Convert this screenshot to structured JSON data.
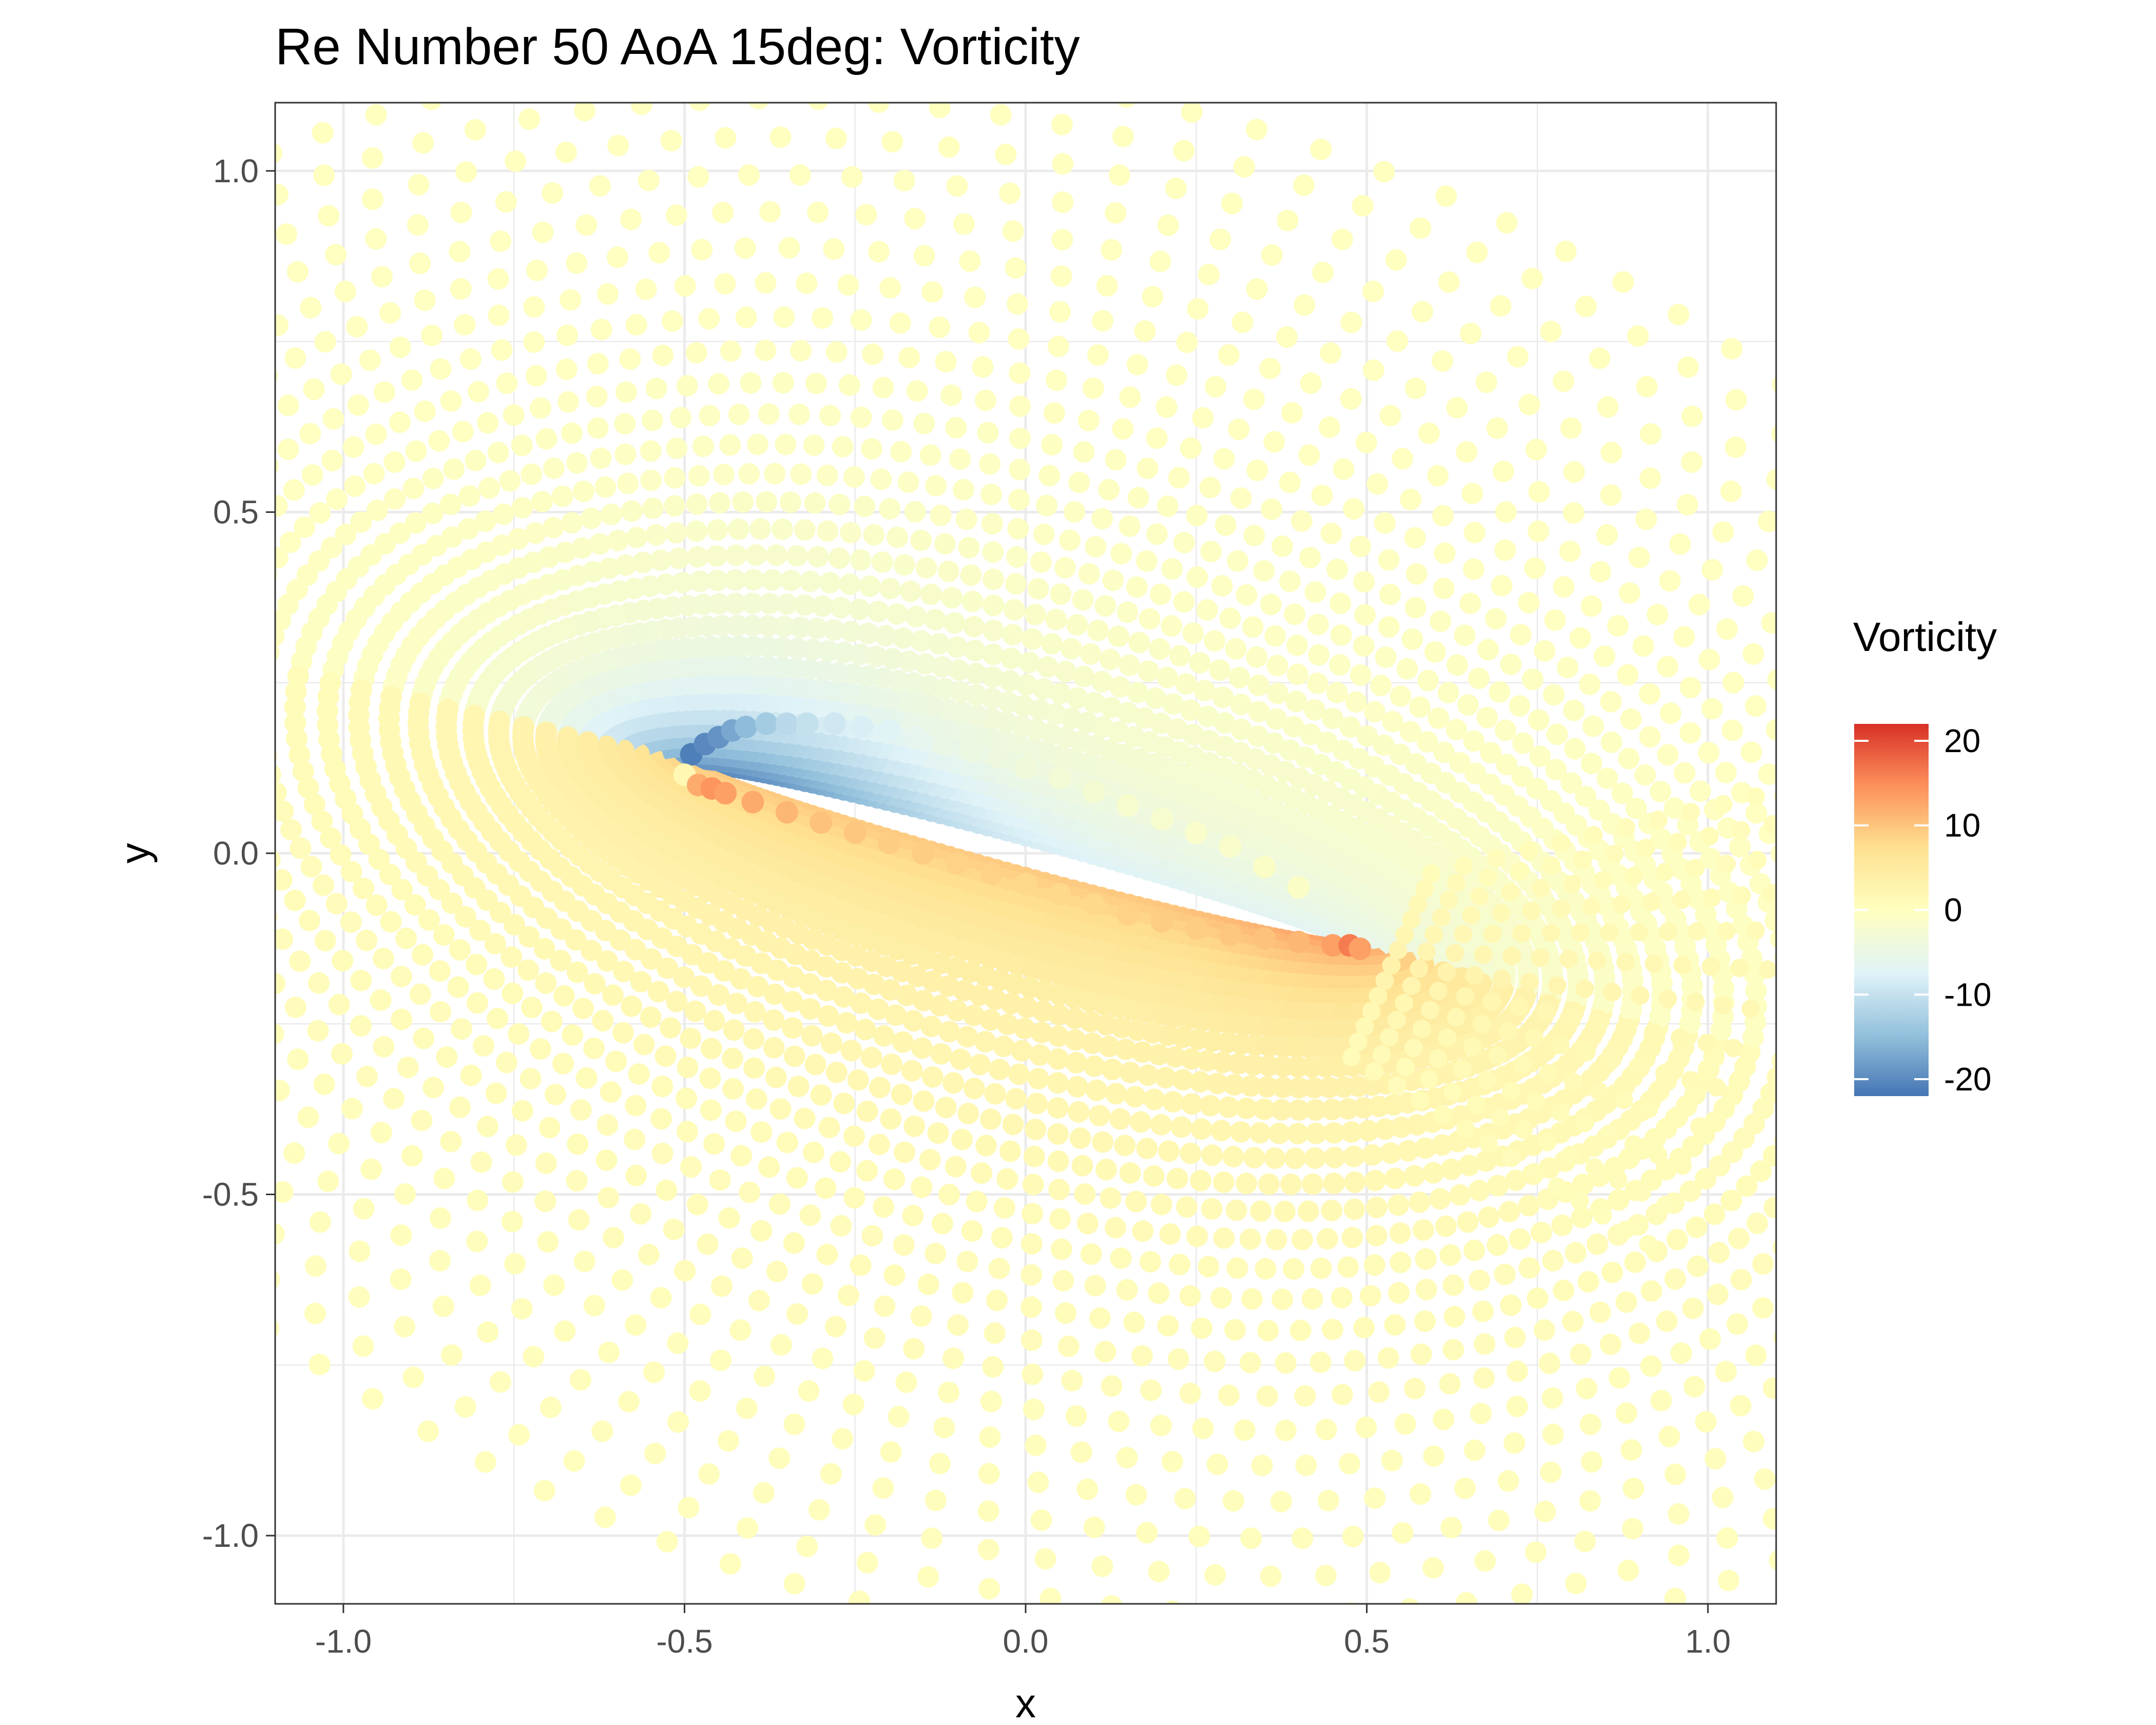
{
  "chart_data": {
    "type": "scatter",
    "title": "Re Number 50 AoA 15deg: Vorticity",
    "xlabel": "x",
    "ylabel": "y",
    "xlim": [
      -1.1,
      1.1
    ],
    "ylim": [
      -1.1,
      1.1
    ],
    "x_ticks": [
      -1.0,
      -0.5,
      0.0,
      0.5,
      1.0
    ],
    "x_tick_labels": [
      "-1.0",
      "-0.5",
      "0.0",
      "0.5",
      "1.0"
    ],
    "y_ticks": [
      -1.0,
      -0.5,
      0.0,
      0.5,
      1.0
    ],
    "y_tick_labels": [
      "-1.0",
      "-0.5",
      "0.0",
      "0.5",
      "1.0"
    ],
    "grid": true,
    "theme": "bw",
    "color_variable": "Vorticity",
    "legend": {
      "title": "Vorticity",
      "position": "right",
      "type": "colorbar",
      "limits": [
        -22,
        22
      ],
      "breaks": [
        20,
        10,
        0,
        -10,
        -20
      ],
      "break_labels": [
        "20",
        "10",
        "0",
        "-10",
        "-20"
      ]
    },
    "color_scale": {
      "palette": "RdYlBu (reversed)",
      "stops": [
        "#4575b4",
        "#91bfdb",
        "#e0f3f8",
        "#ffffbf",
        "#fee090",
        "#fc8d59",
        "#d73027"
      ]
    },
    "airfoil": {
      "leading_edge": [
        -0.5,
        0.13
      ],
      "trailing_edge": [
        0.5,
        -0.14
      ],
      "angle_of_attack_deg": 15,
      "reynolds_number": 50
    },
    "points": [
      [
        -0.49,
        0.145,
        -21
      ],
      [
        -0.47,
        0.16,
        -20
      ],
      [
        -0.45,
        0.17,
        -19
      ],
      [
        -0.43,
        0.18,
        -17
      ],
      [
        -0.41,
        0.185,
        -15
      ],
      [
        -0.38,
        0.19,
        -13
      ],
      [
        -0.35,
        0.19,
        -11
      ],
      [
        -0.32,
        0.19,
        -10
      ],
      [
        -0.28,
        0.19,
        -9
      ],
      [
        -0.24,
        0.185,
        -8
      ],
      [
        -0.2,
        0.18,
        -7
      ],
      [
        -0.16,
        0.17,
        -6
      ],
      [
        -0.12,
        0.16,
        -5
      ],
      [
        -0.08,
        0.15,
        -4.5
      ],
      [
        -0.04,
        0.14,
        -4
      ],
      [
        0.0,
        0.125,
        -3.5
      ],
      [
        0.05,
        0.11,
        -3
      ],
      [
        0.1,
        0.09,
        -2.5
      ],
      [
        0.15,
        0.07,
        -2
      ],
      [
        0.2,
        0.05,
        -2
      ],
      [
        0.25,
        0.03,
        -1.5
      ],
      [
        0.3,
        0.01,
        -1.5
      ],
      [
        0.35,
        -0.02,
        -1
      ],
      [
        0.4,
        -0.05,
        -1
      ],
      [
        -0.5,
        0.115,
        2
      ],
      [
        -0.48,
        0.1,
        12
      ],
      [
        -0.46,
        0.095,
        14
      ],
      [
        -0.44,
        0.088,
        13
      ],
      [
        -0.4,
        0.075,
        12
      ],
      [
        -0.35,
        0.06,
        11
      ],
      [
        -0.3,
        0.045,
        10
      ],
      [
        -0.25,
        0.03,
        9.5
      ],
      [
        -0.2,
        0.015,
        9
      ],
      [
        -0.15,
        0.0,
        9
      ],
      [
        -0.1,
        -0.015,
        8.5
      ],
      [
        -0.05,
        -0.03,
        8.5
      ],
      [
        0.0,
        -0.045,
        8
      ],
      [
        0.05,
        -0.06,
        8
      ],
      [
        0.1,
        -0.075,
        8
      ],
      [
        0.15,
        -0.09,
        8.5
      ],
      [
        0.2,
        -0.1,
        9
      ],
      [
        0.25,
        -0.11,
        9
      ],
      [
        0.3,
        -0.12,
        9.5
      ],
      [
        0.35,
        -0.125,
        10
      ],
      [
        0.4,
        -0.13,
        11
      ],
      [
        0.45,
        -0.135,
        13
      ],
      [
        0.475,
        -0.135,
        16
      ],
      [
        0.49,
        -0.14,
        13
      ]
    ]
  }
}
